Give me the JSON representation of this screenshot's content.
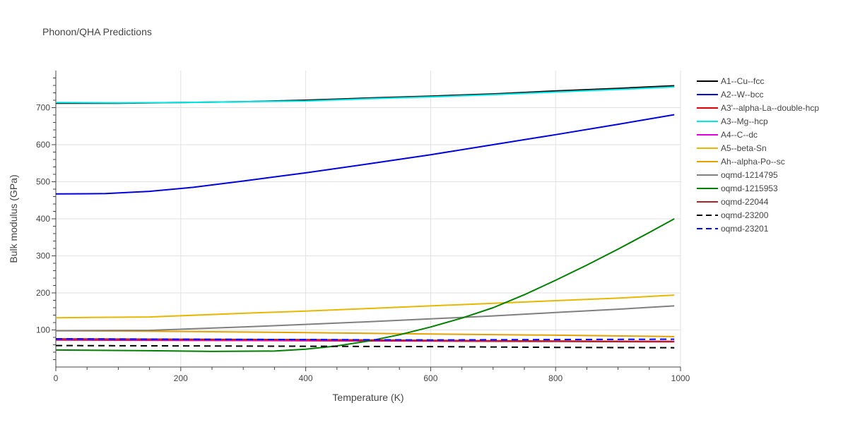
{
  "chart_data": {
    "type": "line",
    "title": "Phonon/QHA Predictions",
    "xlabel": "Temperature (K)",
    "ylabel": "Bulk modulus (GPa)",
    "xlim": [
      0,
      1000
    ],
    "ylim": [
      0,
      800
    ],
    "xticks": [
      0,
      200,
      400,
      600,
      800,
      1000
    ],
    "yticks": [
      100,
      200,
      300,
      400,
      500,
      600,
      700
    ],
    "grid": true,
    "legend_position": "right",
    "series": [
      {
        "name": "A1--Cu--fcc",
        "color": "#000000",
        "dash": "solid",
        "x": [
          0,
          100,
          200,
          300,
          400,
          500,
          600,
          700,
          800,
          900,
          990
        ],
        "y": [
          712,
          712,
          714,
          716,
          720,
          726,
          731,
          737,
          745,
          752,
          759
        ]
      },
      {
        "name": "A2--W--bcc",
        "color": "#0000dd",
        "dash": "solid",
        "x": [
          0,
          80,
          150,
          220,
          300,
          400,
          500,
          600,
          700,
          800,
          900,
          990
        ],
        "y": [
          467,
          468,
          474,
          485,
          502,
          524,
          548,
          573,
          600,
          627,
          655,
          681
        ]
      },
      {
        "name": "A3'--alpha-La--double-hcp",
        "color": "#dd0000",
        "dash": "solid",
        "x": [
          0,
          200,
          400,
          600,
          800,
          990
        ],
        "y": [
          73,
          72,
          71,
          70,
          69,
          68
        ]
      },
      {
        "name": "A3--Mg--hcp",
        "color": "#00e8e8",
        "dash": "solid",
        "x": [
          0,
          100,
          200,
          300,
          400,
          500,
          600,
          700,
          800,
          900,
          990
        ],
        "y": [
          714,
          713,
          714,
          716,
          718,
          724,
          729,
          735,
          742,
          749,
          756
        ]
      },
      {
        "name": "A4--C--dc",
        "color": "#dd00dd",
        "dash": "solid",
        "x": [
          0,
          200,
          400,
          600,
          800,
          990
        ],
        "y": [
          74,
          73,
          72,
          71,
          70,
          69
        ]
      },
      {
        "name": "A5--beta-Sn",
        "color": "#e6b800",
        "dash": "solid",
        "x": [
          0,
          150,
          300,
          400,
          500,
          600,
          700,
          800,
          900,
          990
        ],
        "y": [
          133,
          135,
          145,
          151,
          158,
          165,
          172,
          179,
          186,
          194
        ]
      },
      {
        "name": "Ah--alpha-Po--sc",
        "color": "#e6a000",
        "dash": "solid",
        "x": [
          0,
          200,
          400,
          600,
          800,
          990
        ],
        "y": [
          98,
          96,
          93,
          89,
          86,
          82
        ]
      },
      {
        "name": "oqmd-1214795",
        "color": "#808080",
        "dash": "solid",
        "x": [
          0,
          150,
          300,
          400,
          500,
          600,
          700,
          800,
          900,
          990
        ],
        "y": [
          98,
          99,
          108,
          115,
          122,
          130,
          138,
          147,
          156,
          165
        ]
      },
      {
        "name": "oqmd-1215953",
        "color": "#008000",
        "dash": "solid",
        "x": [
          0,
          150,
          250,
          350,
          400,
          450,
          500,
          550,
          600,
          650,
          700,
          750,
          800,
          850,
          900,
          950,
          990
        ],
        "y": [
          46,
          44,
          42,
          43,
          48,
          57,
          70,
          87,
          108,
          132,
          160,
          195,
          234,
          275,
          318,
          363,
          400
        ]
      },
      {
        "name": "oqmd-22044",
        "color": "#b22222",
        "dash": "solid",
        "x": [
          0,
          200,
          400,
          600,
          800,
          990
        ],
        "y": [
          76,
          75,
          74,
          72,
          70,
          69
        ]
      },
      {
        "name": "oqmd-23200",
        "color": "#000000",
        "dash": "dash",
        "x": [
          0,
          200,
          400,
          600,
          800,
          990
        ],
        "y": [
          58,
          57,
          56,
          55,
          53,
          52
        ]
      },
      {
        "name": "oqmd-23201",
        "color": "#0000ff",
        "dash": "dash",
        "x": [
          0,
          200,
          400,
          600,
          800,
          990
        ],
        "y": [
          76,
          75,
          74,
          73,
          74,
          75
        ]
      }
    ]
  }
}
